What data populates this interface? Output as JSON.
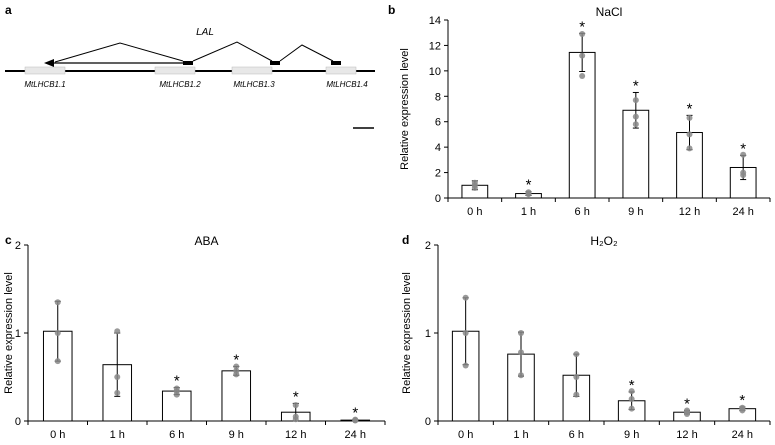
{
  "panel_letters": {
    "a": "a",
    "b": "b",
    "c": "c",
    "d": "d"
  },
  "schematic": {
    "lal_label": "LAL",
    "genes": [
      "MtLHCB1.1",
      "MtLHCB1.2",
      "MtLHCB1.3",
      "MtLHCB1.4"
    ]
  },
  "ylabel": "Relative expression level",
  "chart_data": [
    {
      "panel": "b",
      "type": "bar",
      "title": "NaCl",
      "xlabel": "",
      "ylabel": "Relative expression level",
      "categories": [
        "0 h",
        "1 h",
        "6 h",
        "9 h",
        "12 h",
        "24 h"
      ],
      "values": [
        1.0,
        0.35,
        11.45,
        6.9,
        5.15,
        2.4
      ],
      "errors": [
        0.35,
        0.15,
        1.5,
        1.4,
        1.35,
        0.95
      ],
      "points": [
        [
          0.8,
          1.0,
          1.2
        ],
        [
          0.3,
          0.35,
          0.45
        ],
        [
          9.6,
          11.2,
          12.9
        ],
        [
          5.8,
          6.4,
          7.7
        ],
        [
          3.9,
          5.0,
          6.3
        ],
        [
          1.8,
          2.0,
          3.4
        ]
      ],
      "significant": [
        false,
        true,
        true,
        true,
        true,
        true
      ],
      "sig_label": "*",
      "ylim": [
        0,
        14
      ],
      "yticks": [
        "0",
        "2",
        "4",
        "6",
        "8",
        "10",
        "12",
        "14"
      ]
    },
    {
      "panel": "c",
      "type": "bar",
      "title": "ABA",
      "xlabel": "",
      "ylabel": "Relative expression level",
      "categories": [
        "0 h",
        "1 h",
        "6 h",
        "9 h",
        "12 h",
        "24 h"
      ],
      "values": [
        1.02,
        0.64,
        0.34,
        0.57,
        0.1,
        0.01
      ],
      "errors": [
        0.34,
        0.36,
        0.04,
        0.05,
        0.1,
        0.005
      ],
      "points": [
        [
          0.68,
          1.0,
          1.35
        ],
        [
          0.32,
          0.5,
          1.02
        ],
        [
          0.3,
          0.34,
          0.37
        ],
        [
          0.53,
          0.57,
          0.62
        ],
        [
          0.02,
          0.05,
          0.18
        ],
        [
          0.005,
          0.01,
          0.015
        ]
      ],
      "significant": [
        false,
        false,
        true,
        true,
        true,
        true
      ],
      "sig_label": "*",
      "ylim": [
        0,
        2
      ],
      "yticks": [
        "0",
        "1",
        "2"
      ]
    },
    {
      "panel": "d",
      "type": "bar",
      "title": "H₂O₂",
      "xlabel": "",
      "ylabel": "Relative expression level",
      "categories": [
        "0 h",
        "1 h",
        "6 h",
        "9 h",
        "12 h",
        "24 h"
      ],
      "values": [
        1.02,
        0.76,
        0.52,
        0.23,
        0.1,
        0.14
      ],
      "errors": [
        0.38,
        0.25,
        0.24,
        0.1,
        0.02,
        0.02
      ],
      "points": [
        [
          0.63,
          1.0,
          1.4
        ],
        [
          0.52,
          0.78,
          1.0
        ],
        [
          0.3,
          0.5,
          0.76
        ],
        [
          0.14,
          0.25,
          0.34
        ],
        [
          0.08,
          0.1,
          0.12
        ],
        [
          0.12,
          0.14,
          0.15
        ]
      ],
      "significant": [
        false,
        false,
        false,
        true,
        true,
        true
      ],
      "sig_label": "*",
      "ylim": [
        0,
        2
      ],
      "yticks": [
        "0",
        "1",
        "2"
      ]
    }
  ]
}
